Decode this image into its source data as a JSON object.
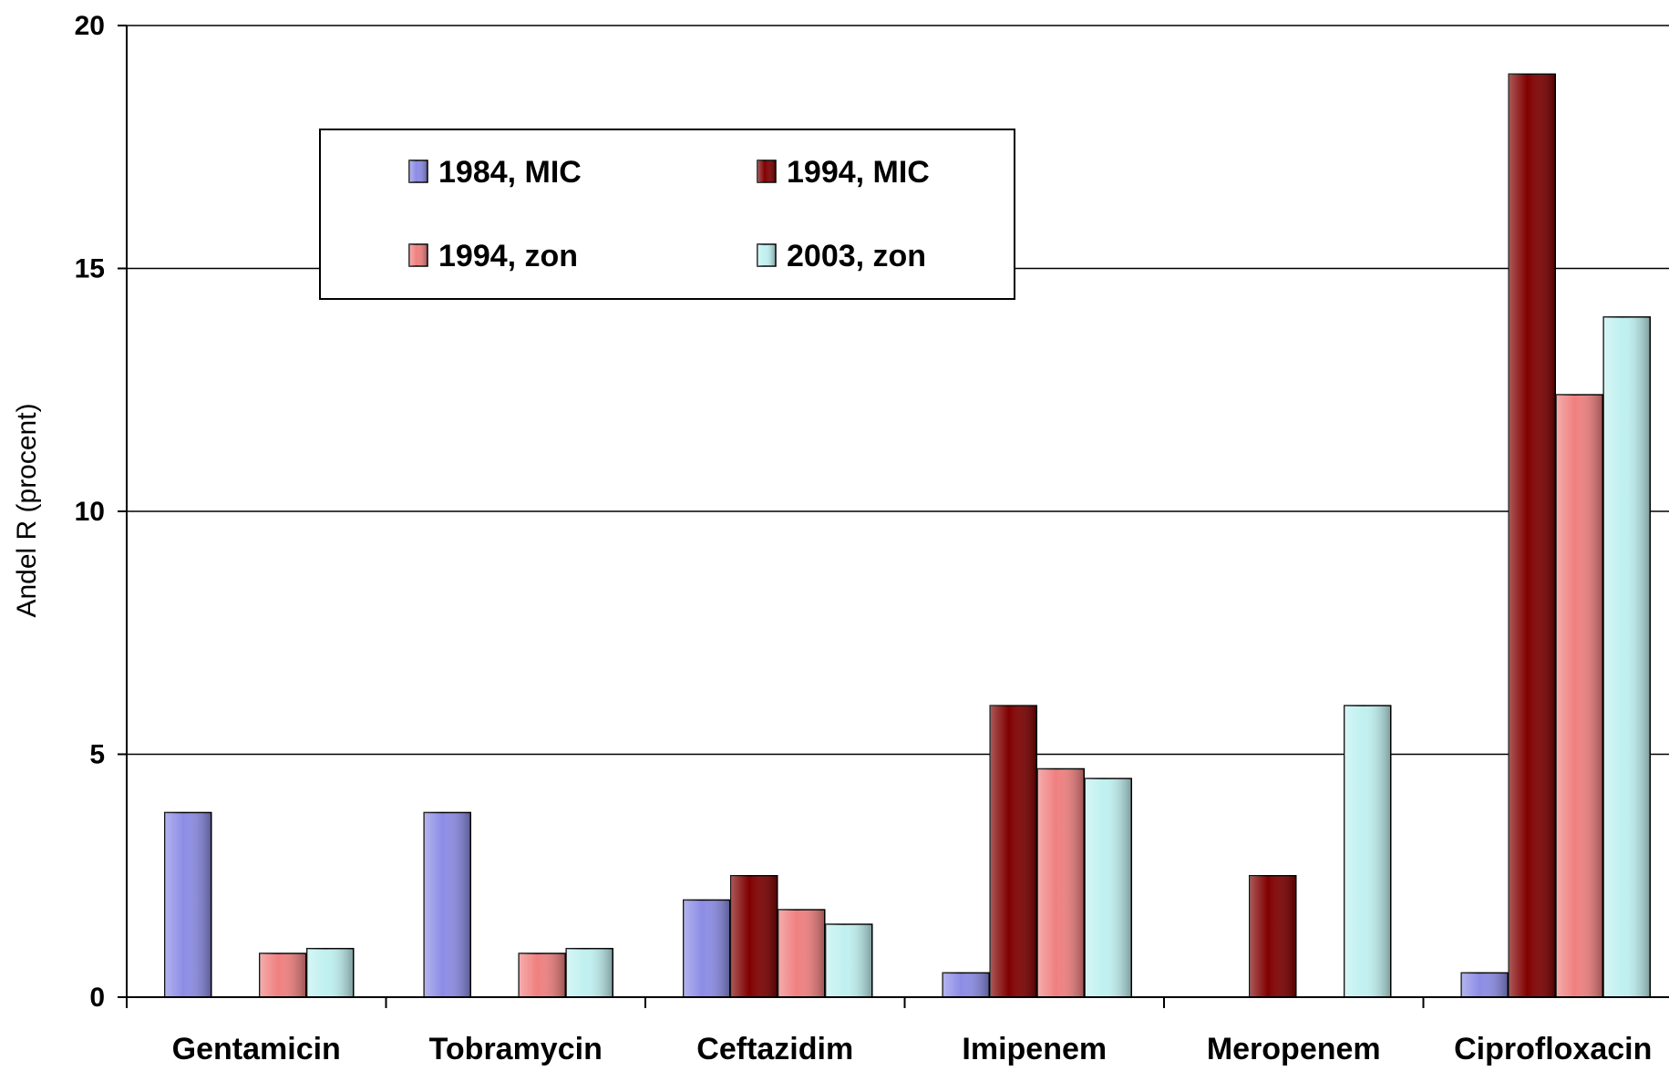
{
  "chart_data": {
    "type": "bar",
    "title": "",
    "xlabel": "",
    "ylabel": "Andel R (procent)",
    "ylim": [
      0,
      20
    ],
    "yticks": [
      0,
      5,
      10,
      15,
      20
    ],
    "grid": true,
    "legend_position": "top-left",
    "categories": [
      "Gentamicin",
      "Tobramycin",
      "Ceftazidim",
      "Imipenem",
      "Meropenem",
      "Ciprofloxacin"
    ],
    "series": [
      {
        "name": "1984, MIC",
        "color": "#8c8ce6",
        "values": [
          3.8,
          3.8,
          2.0,
          0.5,
          null,
          0.5
        ]
      },
      {
        "name": "1994, MIC",
        "color": "#800000",
        "values": [
          null,
          null,
          2.5,
          6.0,
          2.5,
          19.0
        ]
      },
      {
        "name": "1994, zon",
        "color": "#f08080",
        "values": [
          0.9,
          0.9,
          1.8,
          4.7,
          null,
          12.4
        ]
      },
      {
        "name": "2003, zon",
        "color": "#c0f0f0",
        "values": [
          1.0,
          1.0,
          1.5,
          4.5,
          6.0,
          14.0
        ]
      }
    ]
  }
}
